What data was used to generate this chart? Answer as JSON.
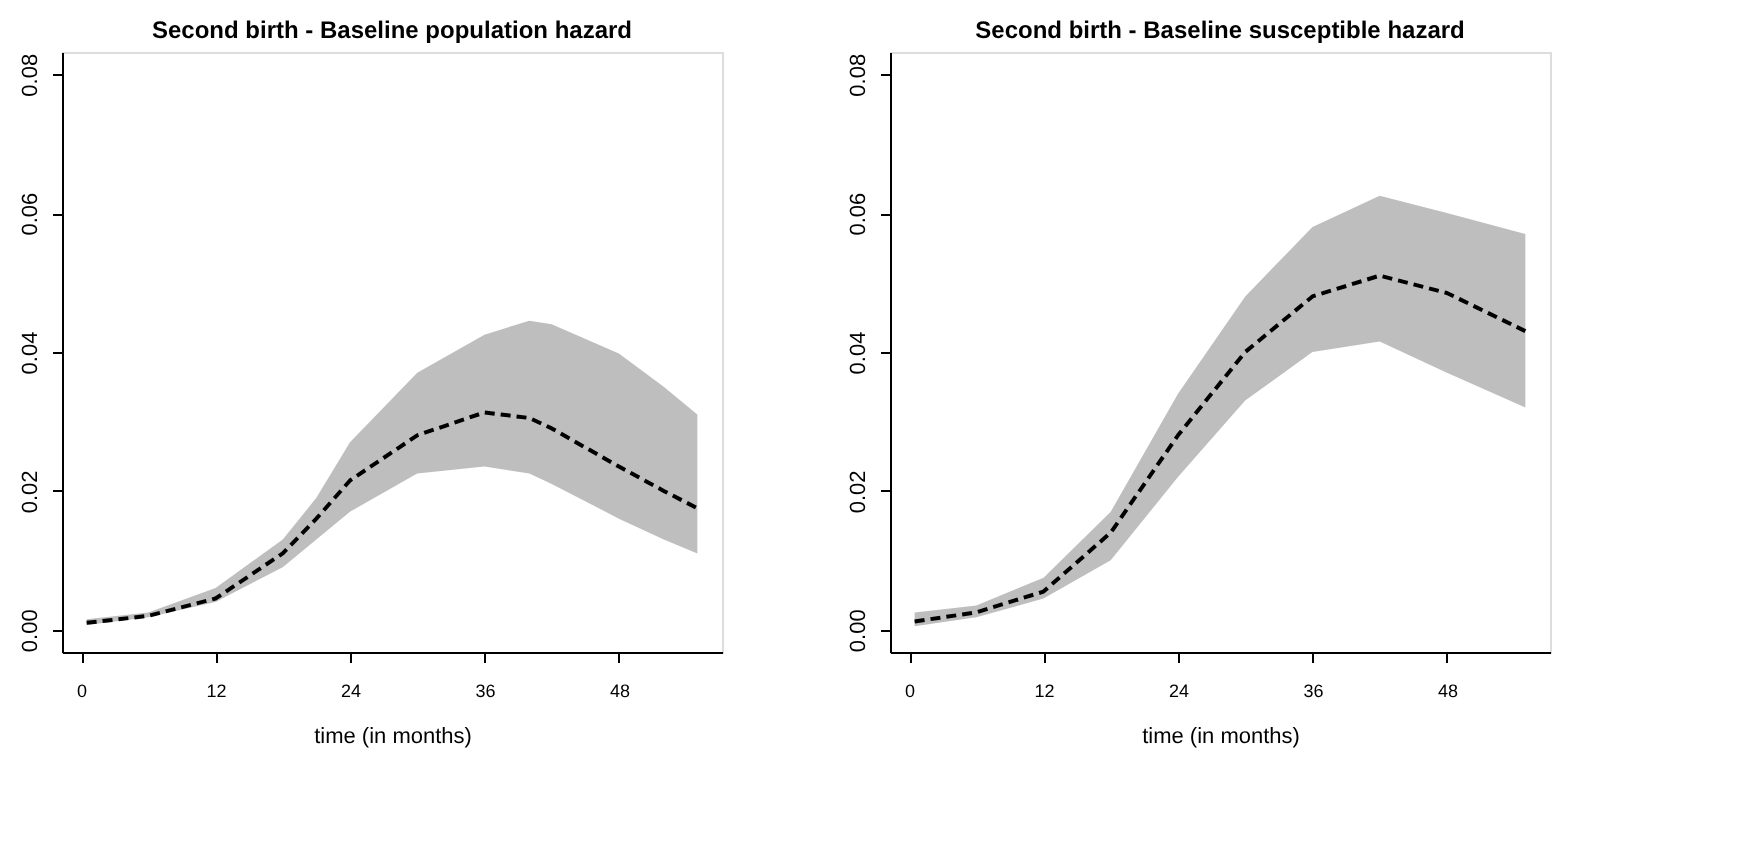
{
  "chart_data": [
    {
      "type": "line",
      "title": "Second birth - Baseline population hazard",
      "xlabel": "time (in months)",
      "x": [
        0.5,
        6,
        12,
        18,
        21,
        24,
        30,
        36,
        40,
        42,
        48,
        52,
        55
      ],
      "series": [
        {
          "color": "#000000",
          "line_style": "dashed",
          "values": [
            0.001,
            0.002,
            0.0045,
            0.011,
            0.016,
            0.0215,
            0.028,
            0.0313,
            0.0305,
            0.029,
            0.0235,
            0.02,
            0.0175
          ],
          "lower": [
            0.0007,
            0.0018,
            0.004,
            0.009,
            0.013,
            0.017,
            0.0225,
            0.0235,
            0.0225,
            0.021,
            0.016,
            0.013,
            0.011
          ],
          "upper": [
            0.0015,
            0.0025,
            0.006,
            0.013,
            0.019,
            0.027,
            0.037,
            0.0425,
            0.0445,
            0.044,
            0.0398,
            0.035,
            0.031
          ]
        }
      ],
      "xlim": [
        -1.7,
        57.2
      ],
      "ylim": [
        -0.0032,
        0.0832
      ],
      "xticks": [
        0,
        12,
        24,
        36,
        48
      ],
      "yticks": [
        {
          "value": 0,
          "label": "0.00"
        },
        {
          "value": 0.02,
          "label": "0.02"
        },
        {
          "value": 0.04,
          "label": "0.04"
        },
        {
          "value": 0.06,
          "label": "0.06"
        },
        {
          "value": 0.08,
          "label": "0.08"
        }
      ],
      "grid": false
    },
    {
      "type": "line",
      "title": "Second birth - Baseline susceptible hazard",
      "xlabel": "time (in months)",
      "x": [
        0.5,
        6,
        12,
        18,
        24,
        30,
        36,
        42,
        48,
        55
      ],
      "series": [
        {
          "color": "#000000",
          "line_style": "dashed",
          "values": [
            0.0012,
            0.0025,
            0.0055,
            0.014,
            0.028,
            0.04,
            0.048,
            0.051,
            0.0485,
            0.043
          ],
          "lower": [
            0.0005,
            0.0018,
            0.0045,
            0.01,
            0.022,
            0.033,
            0.04,
            0.0415,
            0.037,
            0.032
          ],
          "upper": [
            0.0025,
            0.0035,
            0.0075,
            0.017,
            0.034,
            0.048,
            0.058,
            0.0625,
            0.06,
            0.057
          ]
        }
      ],
      "xlim": [
        -1.7,
        57.2
      ],
      "ylim": [
        -0.0032,
        0.0832
      ],
      "xticks": [
        0,
        12,
        24,
        36,
        48
      ],
      "yticks": [
        {
          "value": 0,
          "label": "0.00"
        },
        {
          "value": 0.02,
          "label": "0.02"
        },
        {
          "value": 0.04,
          "label": "0.04"
        },
        {
          "value": 0.06,
          "label": "0.06"
        },
        {
          "value": 0.08,
          "label": "0.08"
        }
      ],
      "grid": false
    }
  ]
}
